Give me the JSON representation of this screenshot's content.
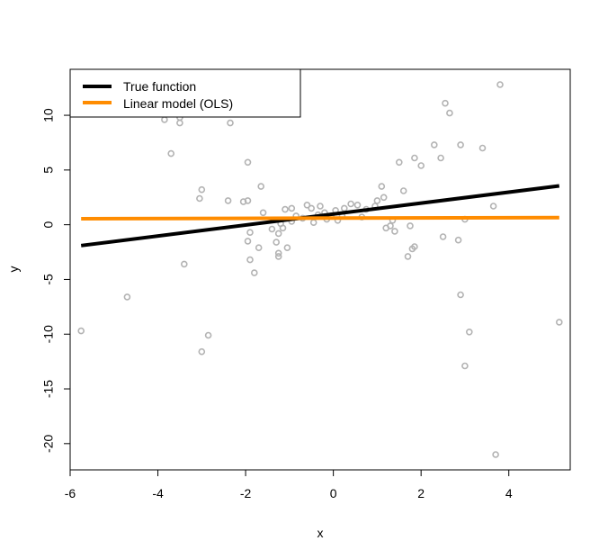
{
  "chart_data": {
    "type": "scatter",
    "title": "",
    "xlabel": "x",
    "ylabel": "y",
    "xlim": [
      -6,
      5.4
    ],
    "ylim": [
      -22.4,
      14.2
    ],
    "xticks": [
      -6,
      -4,
      -2,
      0,
      2,
      4
    ],
    "yticks": [
      -20,
      -15,
      -10,
      -5,
      0,
      5,
      10
    ],
    "legend_position": "top-left",
    "points_color": "#b3b3b3",
    "points": [
      [
        -5.75,
        -9.7
      ],
      [
        -4.7,
        -6.6
      ],
      [
        -3.85,
        9.6
      ],
      [
        -3.7,
        6.5
      ],
      [
        -3.5,
        9.3
      ],
      [
        -3.5,
        9.8
      ],
      [
        -3.4,
        -3.6
      ],
      [
        -3.05,
        2.4
      ],
      [
        -3.0,
        3.2
      ],
      [
        -3.0,
        -11.6
      ],
      [
        -2.85,
        -10.1
      ],
      [
        -2.4,
        2.2
      ],
      [
        -2.35,
        9.3
      ],
      [
        -2.05,
        2.1
      ],
      [
        -1.95,
        5.7
      ],
      [
        -1.95,
        2.2
      ],
      [
        -1.95,
        -1.5
      ],
      [
        -1.9,
        -0.7
      ],
      [
        -1.9,
        -3.2
      ],
      [
        -1.8,
        -4.4
      ],
      [
        -1.7,
        -2.1
      ],
      [
        -1.65,
        3.5
      ],
      [
        -1.6,
        1.1
      ],
      [
        -1.4,
        -0.4
      ],
      [
        -1.3,
        -1.6
      ],
      [
        -1.25,
        -0.8
      ],
      [
        -1.25,
        -2.6
      ],
      [
        -1.25,
        -2.9
      ],
      [
        -1.2,
        0.1
      ],
      [
        -1.15,
        -0.3
      ],
      [
        -1.1,
        1.4
      ],
      [
        -1.05,
        -2.1
      ],
      [
        -0.95,
        0.3
      ],
      [
        -0.95,
        1.5
      ],
      [
        -0.85,
        0.8
      ],
      [
        -0.7,
        0.6
      ],
      [
        -0.6,
        1.8
      ],
      [
        -0.5,
        1.5
      ],
      [
        -0.45,
        0.2
      ],
      [
        -0.35,
        0.9
      ],
      [
        -0.3,
        1.7
      ],
      [
        -0.2,
        1.1
      ],
      [
        -0.15,
        0.5
      ],
      [
        -0.05,
        0.8
      ],
      [
        0.05,
        1.3
      ],
      [
        0.1,
        0.4
      ],
      [
        0.2,
        0.8
      ],
      [
        0.25,
        1.5
      ],
      [
        0.4,
        1.9
      ],
      [
        0.55,
        1.8
      ],
      [
        0.65,
        0.7
      ],
      [
        0.75,
        1.4
      ],
      [
        0.95,
        1.7
      ],
      [
        1.0,
        2.2
      ],
      [
        1.1,
        3.5
      ],
      [
        1.15,
        2.5
      ],
      [
        1.2,
        -0.3
      ],
      [
        1.3,
        -0.1
      ],
      [
        1.35,
        0.4
      ],
      [
        1.4,
        -0.6
      ],
      [
        1.5,
        5.7
      ],
      [
        1.6,
        3.1
      ],
      [
        1.7,
        -2.9
      ],
      [
        1.75,
        -0.1
      ],
      [
        1.8,
        -2.2
      ],
      [
        1.85,
        -2.0
      ],
      [
        1.85,
        6.1
      ],
      [
        2.0,
        5.4
      ],
      [
        2.3,
        7.3
      ],
      [
        2.45,
        6.1
      ],
      [
        2.5,
        -1.1
      ],
      [
        2.55,
        11.1
      ],
      [
        2.65,
        10.2
      ],
      [
        2.85,
        -1.4
      ],
      [
        2.9,
        -6.4
      ],
      [
        2.9,
        7.3
      ],
      [
        3.0,
        0.5
      ],
      [
        3.0,
        -12.9
      ],
      [
        3.1,
        -9.8
      ],
      [
        3.4,
        7.0
      ],
      [
        3.65,
        1.7
      ],
      [
        3.7,
        -21.0
      ],
      [
        3.8,
        12.8
      ],
      [
        5.15,
        -8.9
      ]
    ],
    "series": [
      {
        "name": "True function",
        "color": "#000000",
        "x": [
          -5.75,
          5.15
        ],
        "y": [
          -1.9,
          3.55
        ]
      },
      {
        "name": "Linear model (OLS)",
        "color": "#ff8c00",
        "x": [
          -5.75,
          5.15
        ],
        "y": [
          0.55,
          0.65
        ]
      }
    ]
  }
}
